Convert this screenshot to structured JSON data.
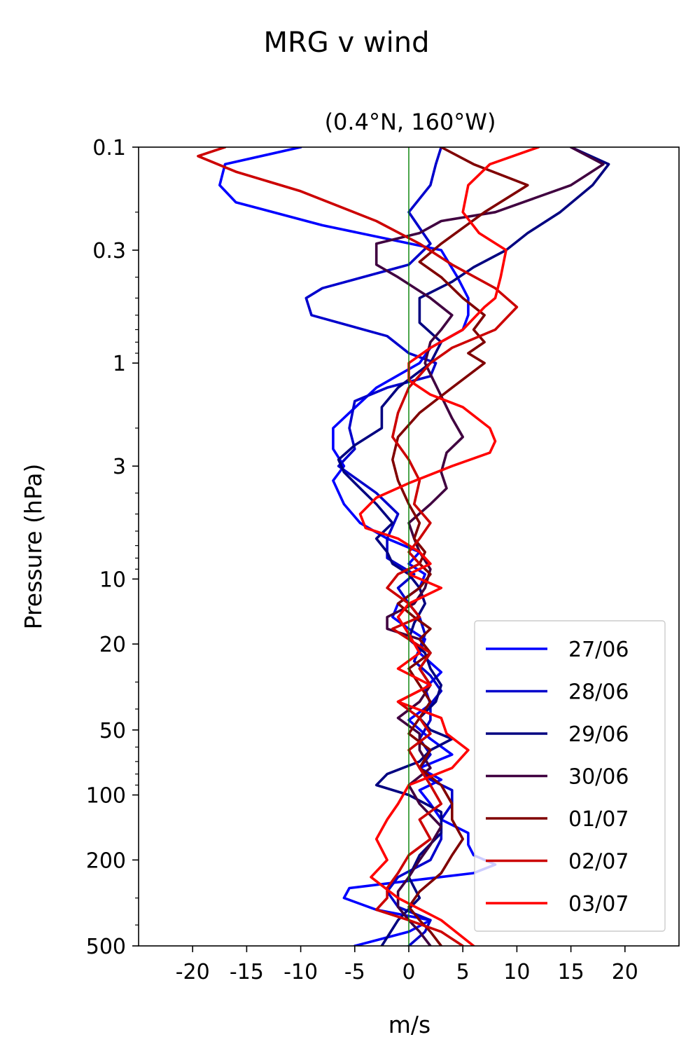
{
  "chart_data": {
    "type": "line",
    "title": "MRG v wind",
    "subtitle": "(0.4°N, 160°W)",
    "xlabel": "m/s",
    "ylabel": "Pressure (hPa)",
    "xlim": [
      -25,
      25
    ],
    "ylim": [
      500,
      0.1
    ],
    "yscale": "log",
    "xticks": [
      -20,
      -15,
      -10,
      -5,
      0,
      5,
      10,
      15,
      20
    ],
    "xtick_labels": [
      "-20",
      "-15",
      "-10",
      "-5",
      "0",
      "5",
      "10",
      "15",
      "20"
    ],
    "yticks": [
      0.1,
      0.3,
      1,
      3,
      10,
      20,
      50,
      100,
      200,
      500
    ],
    "ytick_labels": [
      "0.1",
      "0.3",
      "1",
      "3",
      "10",
      "20",
      "50",
      "100",
      "200",
      "500"
    ],
    "grid": false,
    "legend_position": "lower-right",
    "reference_line": {
      "x": 0,
      "color": "#008000"
    },
    "series": [
      {
        "name": "27/06",
        "color": "#0000ff",
        "x": [
          -10,
          -17,
          -17.5,
          -16,
          -8,
          3,
          4.5,
          5.5,
          5.5,
          5,
          2,
          1,
          -3,
          -5.5,
          -7,
          -7,
          -6,
          -7,
          -6,
          -4.5,
          -2,
          1,
          0,
          1.5,
          1,
          -1,
          -1.5,
          0,
          1.5,
          1,
          3,
          1.5,
          2,
          0,
          2,
          4,
          1,
          3,
          1,
          2,
          3,
          5.5,
          5.5,
          6,
          8,
          6,
          0,
          -5.5,
          -6,
          -3,
          2,
          0,
          -5
        ],
        "y": [
          0.1,
          0.12,
          0.15,
          0.18,
          0.23,
          0.3,
          0.4,
          0.5,
          0.6,
          0.7,
          0.85,
          1.0,
          1.3,
          1.7,
          2.0,
          2.5,
          3.0,
          3.5,
          4.5,
          5.5,
          6.5,
          7.5,
          8.5,
          9.5,
          11,
          13,
          15,
          17,
          19,
          22,
          27,
          32,
          38,
          45,
          55,
          65,
          75,
          85,
          95,
          110,
          130,
          150,
          170,
          190,
          210,
          230,
          250,
          270,
          300,
          340,
          380,
          430,
          500
        ]
      },
      {
        "name": "28/06",
        "color": "#0000cc",
        "x": [
          3,
          2.5,
          2,
          0,
          2,
          0,
          -8,
          -9.5,
          -9,
          -2,
          0,
          2.5,
          2,
          -2,
          -5,
          -5.5,
          -5,
          -6.5,
          -3,
          -1,
          -2,
          -2,
          0.5,
          -1,
          0,
          1,
          1.5,
          1,
          0.5,
          2,
          3,
          2,
          2,
          1,
          2,
          1,
          2,
          4,
          4,
          3,
          3,
          2,
          -1,
          -2,
          -1,
          2,
          1.5,
          0
        ],
        "y": [
          0.1,
          0.12,
          0.15,
          0.2,
          0.28,
          0.35,
          0.45,
          0.5,
          0.6,
          0.75,
          0.9,
          1.0,
          1.15,
          1.3,
          1.5,
          2.0,
          2.5,
          3.0,
          4.0,
          5.0,
          6.5,
          8.0,
          9.5,
          11,
          13,
          15,
          18,
          21,
          24,
          28,
          33,
          38,
          45,
          55,
          65,
          75,
          85,
          95,
          110,
          130,
          160,
          200,
          240,
          280,
          330,
          380,
          430,
          500
        ]
      },
      {
        "name": "29/06",
        "color": "#000080",
        "x": [
          15,
          18.5,
          17,
          14,
          11,
          9,
          6,
          4,
          1,
          1,
          3,
          2,
          -1,
          -2.5,
          -2.5,
          -5,
          -6.5,
          -6,
          -4.5,
          -3,
          -1.5,
          -3,
          -2,
          -1.5,
          0,
          1,
          1.5,
          0.5,
          0,
          1.5,
          2,
          3,
          2.5,
          1,
          2,
          4,
          2,
          1,
          -2,
          -3,
          0,
          3,
          3,
          1,
          0,
          1,
          -1,
          -2.5
        ],
        "y": [
          0.1,
          0.12,
          0.15,
          0.2,
          0.25,
          0.3,
          0.36,
          0.42,
          0.5,
          0.65,
          0.8,
          1.0,
          1.3,
          1.6,
          2.0,
          2.4,
          2.8,
          3.2,
          3.8,
          4.5,
          5.5,
          6.5,
          7.5,
          8.5,
          9.5,
          11,
          13,
          16,
          19,
          22,
          26,
          31,
          37,
          44,
          50,
          55,
          62,
          70,
          80,
          90,
          100,
          120,
          150,
          190,
          240,
          300,
          380,
          500
        ]
      },
      {
        "name": "30/06",
        "color": "#400040",
        "x": [
          15,
          18,
          15,
          8,
          3,
          1,
          -3,
          -3,
          -1,
          2,
          4,
          3,
          2,
          1.5,
          4,
          5,
          3.5,
          3,
          3.5,
          2,
          0,
          0.5,
          1,
          2,
          1.5,
          0.5,
          -2,
          -2,
          1,
          2,
          1,
          2,
          1,
          -1,
          1,
          1,
          2,
          0,
          1,
          3,
          2,
          1,
          0,
          -1,
          -1,
          0,
          1,
          2
        ],
        "y": [
          0.1,
          0.12,
          0.15,
          0.2,
          0.22,
          0.25,
          0.28,
          0.35,
          0.4,
          0.5,
          0.6,
          0.7,
          0.8,
          1.0,
          1.8,
          2.2,
          2.6,
          3.2,
          3.8,
          4.5,
          5.5,
          6.5,
          7.5,
          9.0,
          11,
          13,
          15,
          17,
          19,
          22,
          26,
          31,
          37,
          44,
          52,
          62,
          75,
          90,
          110,
          140,
          170,
          200,
          240,
          280,
          330,
          380,
          430,
          500
        ]
      },
      {
        "name": "01/07",
        "color": "#800000",
        "x": [
          3,
          6,
          11,
          7,
          3,
          1,
          3,
          5,
          7,
          6,
          7,
          5.5,
          7,
          4,
          1,
          -1,
          -1.5,
          -1,
          0,
          1,
          0.5,
          1.5,
          1,
          2,
          1,
          -1,
          0.5,
          2,
          1,
          2,
          0,
          1,
          2,
          1,
          0,
          2,
          1,
          3,
          4,
          4,
          5,
          4,
          3,
          1,
          0,
          1,
          2,
          3
        ],
        "y": [
          0.1,
          0.12,
          0.15,
          0.2,
          0.28,
          0.34,
          0.4,
          0.5,
          0.6,
          0.7,
          0.8,
          0.9,
          1.0,
          1.3,
          1.7,
          2.2,
          2.8,
          3.5,
          4.5,
          5.5,
          6.5,
          7.5,
          8.5,
          9.5,
          11,
          13,
          15,
          17,
          19,
          22,
          26,
          31,
          37,
          44,
          52,
          62,
          75,
          90,
          110,
          130,
          160,
          190,
          230,
          280,
          330,
          380,
          430,
          500
        ]
      },
      {
        "name": "02/07",
        "color": "#cc0000",
        "x": [
          -17,
          -19.5,
          -16,
          -10,
          -3,
          1,
          4,
          8,
          10,
          8,
          4,
          2,
          0,
          -1,
          -1.5,
          0,
          1,
          0.5,
          2,
          1,
          0,
          1,
          -1,
          -2,
          0,
          1,
          -1.5,
          0,
          2,
          1,
          2,
          -1,
          1,
          2,
          0,
          1,
          2,
          3,
          1,
          2,
          0,
          -1,
          -2,
          -2,
          -3,
          0,
          3,
          5
        ],
        "y": [
          0.1,
          0.11,
          0.13,
          0.16,
          0.22,
          0.28,
          0.35,
          0.45,
          0.55,
          0.7,
          0.85,
          1.0,
          1.3,
          1.7,
          2.2,
          2.8,
          3.5,
          4.5,
          5.5,
          6.5,
          7.5,
          8.5,
          9.5,
          11,
          13,
          15,
          17,
          19,
          22,
          26,
          31,
          37,
          44,
          52,
          62,
          75,
          90,
          110,
          130,
          160,
          190,
          230,
          270,
          300,
          340,
          380,
          430,
          500
        ]
      },
      {
        "name": "03/07",
        "color": "#ff0000",
        "x": [
          12,
          7.5,
          5.5,
          5,
          6.5,
          9,
          8.5,
          8,
          7,
          5,
          2,
          0,
          0,
          2,
          5,
          7.5,
          8,
          7.5,
          4,
          0,
          -3,
          -4.5,
          -4,
          -1,
          1,
          2,
          0,
          3,
          0,
          -1,
          0,
          1,
          -1,
          2,
          -1,
          3,
          3.5,
          5.5,
          4,
          0,
          -1,
          -2,
          -3,
          -2,
          -3.5,
          -1,
          3,
          6
        ],
        "y": [
          0.1,
          0.12,
          0.15,
          0.2,
          0.25,
          0.3,
          0.4,
          0.5,
          0.55,
          0.7,
          0.85,
          1.0,
          1.2,
          1.4,
          1.6,
          2.0,
          2.3,
          2.6,
          3.0,
          3.6,
          4.2,
          5.0,
          5.8,
          6.5,
          7.5,
          8.5,
          9.5,
          11,
          13,
          15,
          18,
          22,
          26,
          31,
          37,
          44,
          52,
          62,
          75,
          90,
          110,
          130,
          160,
          200,
          240,
          300,
          380,
          500
        ]
      }
    ]
  }
}
